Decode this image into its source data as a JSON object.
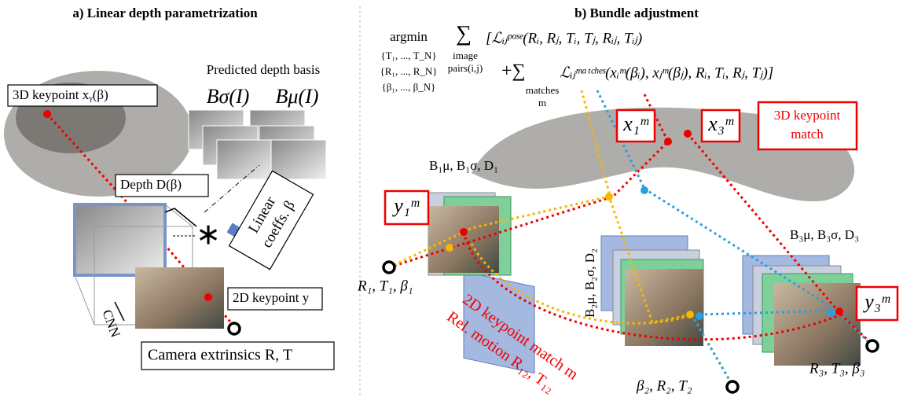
{
  "panel_a": {
    "title": "a) Linear depth parametrization",
    "depth_basis_label": "Predicted depth basis",
    "basis_sigma": "Bσ(I)",
    "basis_mu": "Bμ(I)",
    "keypoint_3d": "3D keypoint xᵧ(β)",
    "depth": "Depth D(β)",
    "coeffs_line1": "Linear",
    "coeffs_line2": "coeffs. β",
    "operator": "∗",
    "keypoint_2d": "2D keypoint y",
    "cnn": "CNN",
    "extrinsics": "Camera extrinsics R, T"
  },
  "panel_b": {
    "title": "b) Bundle adjustment",
    "equation": {
      "argmin": "argmin",
      "set_t": "{T₁, ..., T_N}",
      "set_r": "{R₁, ..., R_N}",
      "set_beta": "{β₁, ..., β_N}",
      "sum": "∑",
      "sum_pairs_1": "image",
      "sum_pairs_2": "pairs(i,j)",
      "pose_term": "[ℒᵢⱼᵖᵒˢᵉ(Rᵢ, Rⱼ, Tᵢ, Tⱼ, Rᵢⱼ, Tᵢⱼ)",
      "plus_sum": "+∑",
      "sum_matches_1": "matches",
      "sum_matches_2": "m",
      "match_term": "ℒᵢⱼᵐᵃᵗᶜʰᵉˢ(xᵢᵐ(βᵢ), xⱼᵐ(βⱼ), Rᵢ, Tᵢ, Rⱼ, Tⱼ)]"
    },
    "x1": "x₁ᵐ",
    "x3": "x₃ᵐ",
    "match_3d_line1": "3D keypoint",
    "match_3d_line2": "match",
    "basis1": "B₁μ, B₁σ, D₁",
    "basis2": "B₂μ, B₂σ, D₂",
    "basis3": "B₃μ, B₃σ, D₃",
    "y1": "y₁ᵐ",
    "y3": "y₃ᵐ",
    "cam1": "R₁, T₁, β₁",
    "cam2": "β₂, R₂, T₂",
    "cam3": "R₃, T₃, β₃",
    "match_2d": "2D keypoint match m",
    "rel_motion": "Rel. motion R₁₂, T₁₂"
  }
}
